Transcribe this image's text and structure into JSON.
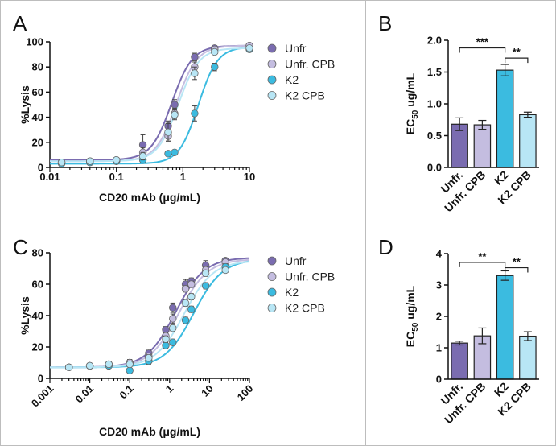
{
  "colors": {
    "unfr": "#7a6cb0",
    "unfr_cpb": "#c4bde0",
    "k2": "#3bbbe0",
    "k2_cpb": "#b8e6f5",
    "panel_border": "#bdbdbd",
    "axis": "#111111"
  },
  "chart_data": [
    {
      "panel_letter": "A",
      "type": "scatter",
      "xscale": "log",
      "xlim": [
        0.01,
        10
      ],
      "xticks": [
        0.01,
        0.1,
        1,
        10
      ],
      "xtick_labels": [
        "0.01",
        "0.1",
        "1",
        "10"
      ],
      "ylim": [
        0,
        100
      ],
      "yticks": [
        0,
        20,
        40,
        60,
        80,
        100
      ],
      "ytick_labels": [
        "0",
        "20",
        "40",
        "60",
        "80",
        "100"
      ],
      "xlabel": "CD20 mAb (μg/mL)",
      "ylabel": "%Lysis",
      "legend_position": "right",
      "series": [
        {
          "name": "Unfr",
          "color_key": "unfr",
          "x": [
            0.015,
            0.04,
            0.1,
            0.25,
            0.6,
            0.75,
            1.5,
            3,
            10
          ],
          "y": [
            4,
            5,
            6,
            18,
            33,
            50,
            88,
            95,
            97
          ],
          "err": [
            1,
            1,
            1,
            8,
            4,
            4,
            3,
            2,
            1
          ],
          "fit": {
            "bottom": 6,
            "top": 97,
            "ec50": 0.68,
            "hill": 2.8
          }
        },
        {
          "name": "Unfr. CPB",
          "color_key": "unfr_cpb",
          "x": [
            0.015,
            0.04,
            0.1,
            0.25,
            0.6,
            0.75,
            1.5,
            3,
            10
          ],
          "y": [
            4,
            5,
            5,
            12,
            25,
            43,
            80,
            94,
            97
          ],
          "err": [
            1,
            1,
            1,
            4,
            4,
            4,
            4,
            2,
            1
          ],
          "fit": {
            "bottom": 5,
            "top": 97,
            "ec50": 0.8,
            "hill": 2.8
          }
        },
        {
          "name": "K2",
          "color_key": "k2",
          "x": [
            0.015,
            0.04,
            0.1,
            0.25,
            0.6,
            0.75,
            1.5,
            3,
            10
          ],
          "y": [
            3,
            4,
            5,
            6,
            11,
            12,
            43,
            80,
            94
          ],
          "err": [
            1,
            1,
            1,
            1,
            2,
            2,
            6,
            3,
            2
          ],
          "fit": {
            "bottom": 3,
            "top": 96,
            "ec50": 1.7,
            "hill": 3
          }
        },
        {
          "name": "K2 CPB",
          "color_key": "k2_cpb",
          "x": [
            0.015,
            0.04,
            0.1,
            0.25,
            0.6,
            0.75,
            1.5,
            3,
            10
          ],
          "y": [
            4,
            5,
            6,
            9,
            28,
            42,
            75,
            92,
            95
          ],
          "err": [
            1,
            1,
            1,
            3,
            7,
            4,
            5,
            2,
            1
          ],
          "fit": {
            "bottom": 5,
            "top": 95,
            "ec50": 0.85,
            "hill": 2.8
          }
        }
      ]
    },
    {
      "panel_letter": "B",
      "type": "bar",
      "categories": [
        "Unfr.",
        "Unfr. CPB",
        "K2",
        "K2 CPB"
      ],
      "values": [
        0.68,
        0.67,
        1.53,
        0.83
      ],
      "errors": [
        0.1,
        0.07,
        0.09,
        0.04
      ],
      "bar_color_keys": [
        "unfr",
        "unfr_cpb",
        "k2",
        "k2_cpb"
      ],
      "ylim": [
        0,
        2.0
      ],
      "yticks": [
        0,
        0.5,
        1.0,
        1.5,
        2.0
      ],
      "ytick_labels": [
        "0.0",
        "0.5",
        "1.0",
        "1.5",
        "2.0"
      ],
      "ylabel_main": "EC",
      "ylabel_sub": "50",
      "ylabel_rest": " ug/mL",
      "significance": [
        {
          "from": 0,
          "to": 2,
          "label": "***",
          "y_value": 1.88
        },
        {
          "from": 2,
          "to": 3,
          "label": "**",
          "y_value": 1.72
        }
      ]
    },
    {
      "panel_letter": "C",
      "type": "scatter",
      "xscale": "log",
      "xlim": [
        0.001,
        100
      ],
      "xticks": [
        0.001,
        0.01,
        0.1,
        1,
        10,
        100
      ],
      "xtick_labels": [
        "0.001",
        "0.01",
        "0.1",
        "1",
        "10",
        "100"
      ],
      "ylim": [
        0,
        80
      ],
      "yticks": [
        0,
        20,
        40,
        60,
        80
      ],
      "ytick_labels": [
        "0",
        "20",
        "40",
        "60",
        "80"
      ],
      "xlabel": "CD20 mAb (μg/mL)",
      "ylabel": "%Lysis",
      "legend_position": "right",
      "series": [
        {
          "name": "Unfr",
          "color_key": "unfr",
          "x": [
            0.003,
            0.01,
            0.03,
            0.1,
            0.3,
            0.8,
            1.2,
            2.5,
            3.5,
            8,
            25
          ],
          "y": [
            7,
            8,
            9,
            10,
            16,
            31,
            45,
            60,
            62,
            72,
            75
          ],
          "err": [
            1,
            1,
            2,
            2,
            2,
            2,
            3,
            3,
            2,
            3,
            1
          ],
          "fit": {
            "bottom": 7,
            "top": 77,
            "ec50": 1.4,
            "hill": 1.2
          }
        },
        {
          "name": "Unfr. CPB",
          "color_key": "unfr_cpb",
          "x": [
            0.003,
            0.01,
            0.03,
            0.1,
            0.3,
            0.8,
            1.2,
            2.5,
            3.5,
            8,
            25
          ],
          "y": [
            7,
            8,
            9,
            10,
            14,
            27,
            38,
            57,
            60,
            69,
            74
          ],
          "err": [
            1,
            1,
            1,
            2,
            2,
            2,
            3,
            2,
            2,
            2,
            1
          ],
          "fit": {
            "bottom": 7,
            "top": 76,
            "ec50": 1.7,
            "hill": 1.2
          }
        },
        {
          "name": "K2",
          "color_key": "k2",
          "x": [
            0.003,
            0.01,
            0.03,
            0.1,
            0.3,
            0.8,
            1.2,
            2.5,
            3.5,
            8,
            25
          ],
          "y": [
            7,
            8,
            8,
            5,
            11,
            21,
            23,
            37,
            44,
            59,
            71
          ],
          "err": [
            1,
            1,
            1,
            1,
            2,
            2,
            2,
            2,
            2,
            2,
            2
          ],
          "fit": {
            "bottom": 7,
            "top": 76,
            "ec50": 4.0,
            "hill": 1.2
          }
        },
        {
          "name": "K2 CPB",
          "color_key": "k2_cpb",
          "x": [
            0.003,
            0.01,
            0.03,
            0.1,
            0.3,
            0.8,
            1.2,
            2.5,
            3.5,
            8,
            25
          ],
          "y": [
            7,
            8,
            9,
            9,
            13,
            25,
            32,
            48,
            52,
            67,
            69
          ],
          "err": [
            1,
            1,
            1,
            1,
            2,
            2,
            2,
            2,
            2,
            2,
            1
          ],
          "fit": {
            "bottom": 7,
            "top": 75,
            "ec50": 2.3,
            "hill": 1.2
          }
        }
      ]
    },
    {
      "panel_letter": "D",
      "type": "bar",
      "categories": [
        "Unfr.",
        "Unfr. CPB",
        "K2",
        "K2 CPB"
      ],
      "values": [
        1.15,
        1.38,
        3.3,
        1.37
      ],
      "errors": [
        0.06,
        0.25,
        0.15,
        0.14
      ],
      "bar_color_keys": [
        "unfr",
        "unfr_cpb",
        "k2",
        "k2_cpb"
      ],
      "ylim": [
        0,
        4
      ],
      "yticks": [
        0,
        1,
        2,
        3,
        4
      ],
      "ytick_labels": [
        "0",
        "1",
        "2",
        "3",
        "4"
      ],
      "ylabel_main": "EC",
      "ylabel_sub": "50",
      "ylabel_rest": " ug/mL",
      "significance": [
        {
          "from": 0,
          "to": 2,
          "label": "**",
          "y_value": 3.72
        },
        {
          "from": 2,
          "to": 3,
          "label": "**",
          "y_value": 3.55
        }
      ]
    }
  ]
}
